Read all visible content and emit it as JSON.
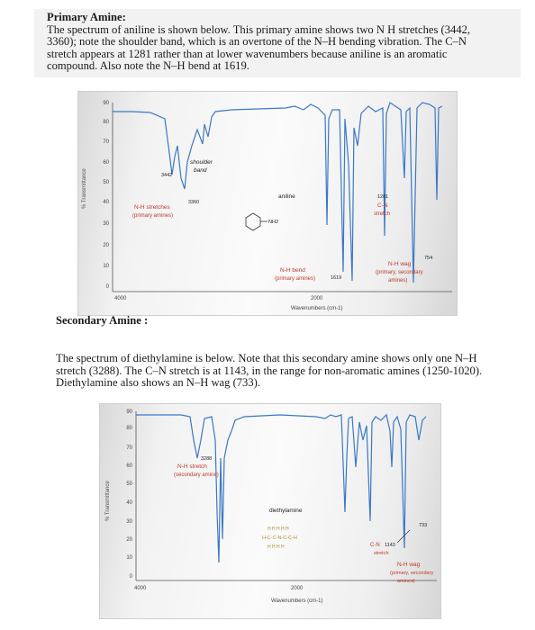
{
  "document": {
    "primary_heading": "Primary Amine:",
    "primary_paragraph_lines": [
      "The spectrum of aniline is shown below. This primary amine shows two N H stretches (3442,",
      "3360); note the shoulder band, which is an overtone of the N–H bending vibration. The C–N",
      "stretch appears at 1281 rather than at lower wavenumbers because aniline is an aromatic",
      "compound. Also note the N–H bend at 1619."
    ],
    "secondary_heading": "Secondary Amine :",
    "secondary_paragraph_lines": [
      "The spectrum of diethylamine is below. Note that this secondary amine shows only one N–H",
      "stretch (3288). The C–N stretch is at 1143, in the range for non-aromatic amines (1250-1020).",
      "Diethylamine also shows an N–H wag (733)."
    ]
  },
  "spectrum1": {
    "ylabel": "% Transmittance",
    "yticks": [
      "90",
      "80",
      "70",
      "60",
      "50",
      "40",
      "30",
      "20",
      "10",
      "0"
    ],
    "xticks": [
      "4000",
      "2000"
    ],
    "xlabel": "Wavenumbers (cm-1)",
    "annotations": {
      "peak_3442": "3442",
      "peak_3360": "3360",
      "shoulder_line1": "shoulder",
      "shoulder_line2": "band",
      "nh_stretch_line1": "N-H stretches",
      "nh_stretch_line2": "(primary amines)",
      "compound": "aniline",
      "nh2": "NH2",
      "peak_1281": "1281",
      "cn_line1": "C-N",
      "cn_line2": "stretch",
      "nh_bend_line1": "N-H bend",
      "nh_bend_line2": "(primary amines)",
      "peak_1619": "1619",
      "peak_754": "754",
      "nh_wag_line1": "N-H wag",
      "nh_wag_line2": "(primary, secondary",
      "nh_wag_line3": "amines)"
    },
    "line_color": "#3a78c8"
  },
  "spectrum2": {
    "ylabel": "% Transmittance",
    "yticks": [
      "90",
      "80",
      "70",
      "60",
      "50",
      "40",
      "30",
      "20",
      "10",
      "0"
    ],
    "xticks": [
      "4000",
      "2000"
    ],
    "xlabel": "Wavenumbers (cm-1)",
    "annotations": {
      "peak_3288": "3288",
      "nh_stretch_line1": "N-H stretch",
      "nh_stretch_line2": "(secondary amine)",
      "compound": "diethylamine",
      "struct_h_top": "H H   H H H",
      "struct_chain": "H-C-C-N-C-C-H",
      "struct_h_bottom": "H H   H H",
      "peak_733": "733",
      "cn_label": "C-N",
      "peak_1143": "1143",
      "cn_line2": "stretch",
      "nh_wag_line1": "N-H wag",
      "nh_wag_line2": "(primary, secondary",
      "nh_wag_line3": "amines)"
    },
    "line_color": "#3a78c8"
  }
}
